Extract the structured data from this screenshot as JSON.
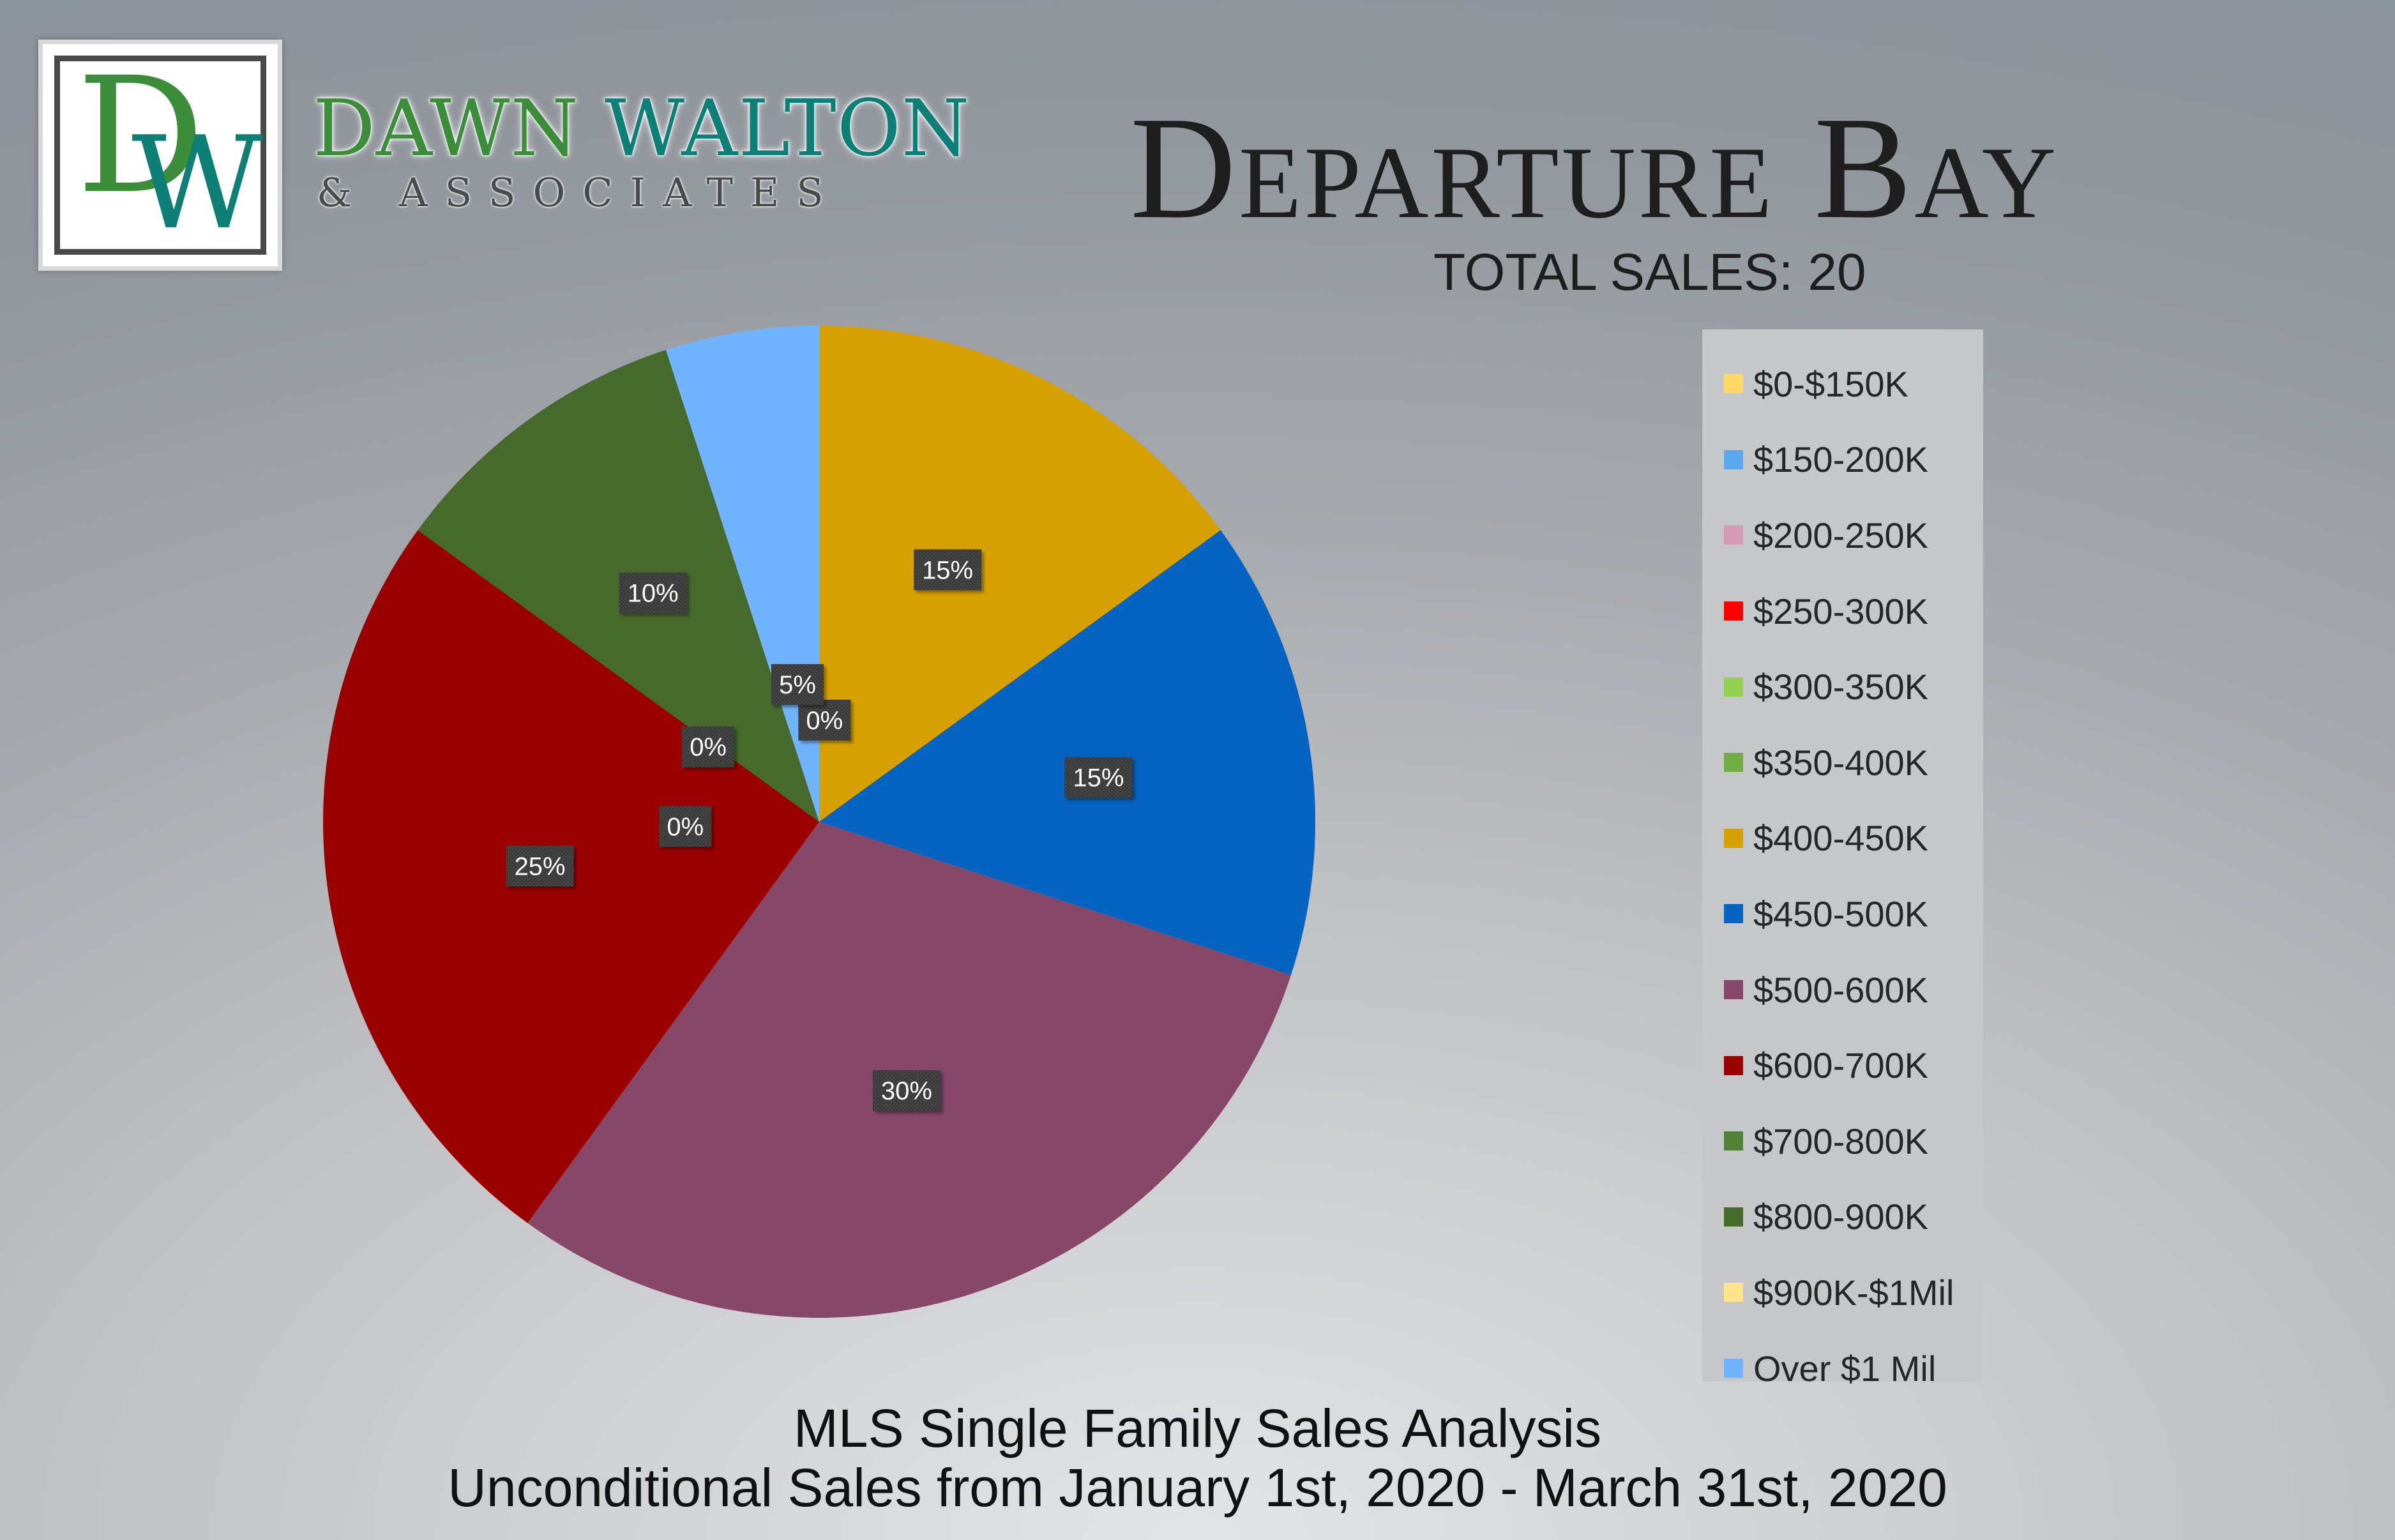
{
  "logo": {
    "monogram_d": "D",
    "monogram_w": "W",
    "brand_first": "DAWN",
    "brand_last": "WALTON",
    "brand_sub": "& ASSOCIATES"
  },
  "title": "Departure Bay",
  "total_sales": "TOTAL SALES: 20",
  "footer": {
    "line1": "MLS Single Family Sales Analysis",
    "line2": "Unconditional Sales from January 1st, 2020 - March 31st, 2020"
  },
  "chart_data": {
    "type": "pie",
    "start_angle_deg": 0,
    "direction": "clockwise",
    "legend_position": "right",
    "slices": [
      {
        "name": "$0-$150K",
        "value": 0,
        "label": "0%",
        "color": "#ffd966"
      },
      {
        "name": "$150-200K",
        "value": 0,
        "label": "",
        "color": "#5aa9f0"
      },
      {
        "name": "$200-250K",
        "value": 0,
        "label": "",
        "color": "#d49ab4"
      },
      {
        "name": "$250-300K",
        "value": 0,
        "label": "",
        "color": "#ff0000"
      },
      {
        "name": "$300-350K",
        "value": 0,
        "label": "",
        "color": "#92d050"
      },
      {
        "name": "$350-400K",
        "value": 0,
        "label": "",
        "color": "#70ad47"
      },
      {
        "name": "$400-450K",
        "value": 15,
        "label": "15%",
        "color": "#d6a100"
      },
      {
        "name": "$450-500K",
        "value": 15,
        "label": "15%",
        "color": "#0563c1"
      },
      {
        "name": "$500-600K",
        "value": 30,
        "label": "30%",
        "color": "#874768"
      },
      {
        "name": "$600-700K",
        "value": 25,
        "label": "25%",
        "color": "#9b0000"
      },
      {
        "name": "$700-800K",
        "value": 0,
        "label": "0%",
        "color": "#548235"
      },
      {
        "name": "$800-900K",
        "value": 10,
        "label": "10%",
        "color": "#466a2b"
      },
      {
        "name": "$900K-$1Mil",
        "value": 0,
        "label": "0%",
        "color": "#ffe38a"
      },
      {
        "name": "Over $1 Mil",
        "value": 5,
        "label": "5%",
        "color": "#70b4ff"
      }
    ]
  }
}
